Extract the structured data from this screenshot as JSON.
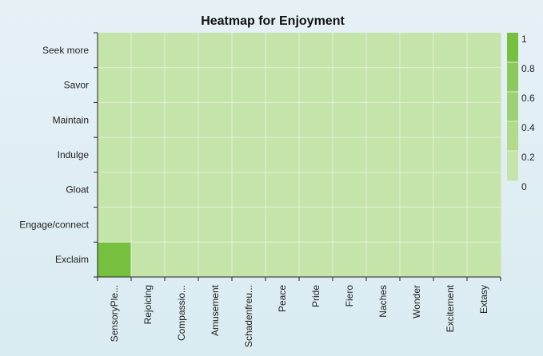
{
  "chart_data": {
    "type": "heatmap",
    "title": "Heatmap for Enjoyment",
    "xlabel": "",
    "ylabel": "",
    "x_categories": [
      "SensoryPle...",
      "Rejoicing",
      "Compassio...",
      "Amusement",
      "Schadenfreu...",
      "Peace",
      "Pride",
      "Fiero",
      "Naches",
      "Wonder",
      "Excitement",
      "Extasy"
    ],
    "y_categories": [
      "Seek more",
      "Savor",
      "Maintain",
      "Indulge",
      "Gloat",
      "Engage/connect",
      "Exclaim"
    ],
    "values": [
      [
        0,
        0,
        0,
        0,
        0,
        0,
        0,
        0,
        0,
        0,
        0,
        0
      ],
      [
        0,
        0,
        0,
        0,
        0,
        0,
        0,
        0,
        0,
        0,
        0,
        0
      ],
      [
        0,
        0,
        0,
        0,
        0,
        0,
        0,
        0,
        0,
        0,
        0,
        0
      ],
      [
        0,
        0,
        0,
        0,
        0,
        0,
        0,
        0,
        0,
        0,
        0,
        0
      ],
      [
        0,
        0,
        0,
        0,
        0,
        0,
        0,
        0,
        0,
        0,
        0,
        0
      ],
      [
        0,
        0,
        0,
        0,
        0,
        0,
        0,
        0,
        0,
        0,
        0,
        0
      ],
      [
        1,
        0,
        0,
        0,
        0,
        0,
        0,
        0,
        0,
        0,
        0,
        0
      ]
    ],
    "color_scale": {
      "min": 0,
      "max": 1,
      "ticks": [
        "1",
        "0.8",
        "0.6",
        "0.4",
        "0.2",
        "0"
      ],
      "colors": [
        "#c5e4a9",
        "#b1da8b",
        "#9dd074",
        "#8bc85e",
        "#76bf3f"
      ]
    },
    "grid": true,
    "legend": "right"
  }
}
